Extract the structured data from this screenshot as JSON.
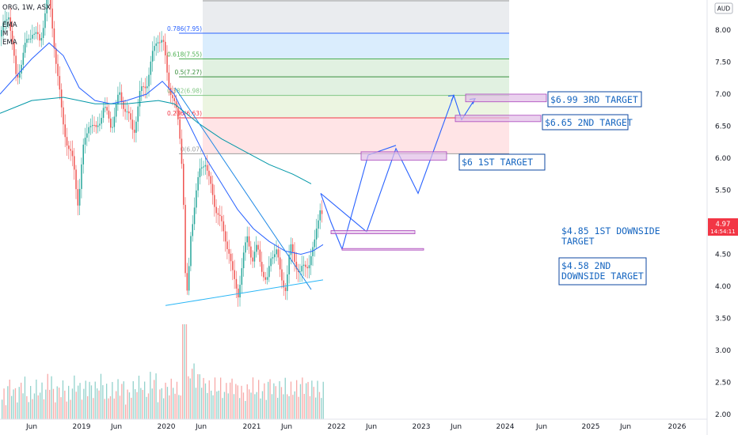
{
  "header": {
    "symbol": "ORG, 1W, ASX",
    "indicators": [
      "EMA",
      "M",
      "EMA"
    ],
    "currency": "AUD"
  },
  "price_label": {
    "price": "4.97",
    "countdown": "14:54:11",
    "color": "#f23645"
  },
  "colors": {
    "up": "#26a69a",
    "down": "#ef5350",
    "ema_blue": "#2962ff",
    "ema_teal": "#0097a7",
    "projection": "#2962ff",
    "target_box": "#ce93d8",
    "text_blue": "#1565c0"
  },
  "fib_levels": [
    {
      "label": "0.786(7.95)",
      "value": 7.95,
      "color": "#2962ff"
    },
    {
      "label": "0.618(7.55)",
      "value": 7.55,
      "color": "#4caf50"
    },
    {
      "label": "0.5(7.27)",
      "value": 7.27,
      "color": "#388e3c"
    },
    {
      "label": "0.382(6.98)",
      "value": 6.98,
      "color": "#81c784"
    },
    {
      "label": "0.236(6.63)",
      "value": 6.63,
      "color": "#f23645"
    },
    {
      "label": "0(6.07)",
      "value": 6.07,
      "color": "#9e9e9e"
    }
  ],
  "annotations": [
    {
      "text": "$6.99 3RD TARGET",
      "lines": [
        "$6.99 3RD TARGET"
      ]
    },
    {
      "text": "$6.65 2ND TARGET",
      "lines": [
        "$6.65 2ND TARGET"
      ]
    },
    {
      "text": "$6 1ST TARGET",
      "lines": [
        "$6 1ST TARGET"
      ]
    },
    {
      "text": "$4.85 1ST DOWNSIDE TARGET",
      "lines": [
        "$4.85 1ST DOWNSIDE",
        "TARGET"
      ]
    },
    {
      "text": "$4.58 2ND DOWNSIDE TARGET",
      "lines": [
        "$4.58 2ND",
        "DOWNSIDE TARGET"
      ]
    }
  ],
  "chart_data": {
    "type": "candlestick",
    "interval": "1W",
    "x_tick_labels": [
      "Jun",
      "2019",
      "Jun",
      "2020",
      "Jun",
      "2021",
      "Jun",
      "2022",
      "Jun",
      "2023",
      "Jun",
      "2024",
      "Jun",
      "2025",
      "Jun",
      "2026"
    ],
    "y_tick_labels": [
      "8.00",
      "7.50",
      "7.00",
      "6.50",
      "6.00",
      "5.50",
      "5.00",
      "4.50",
      "4.00",
      "3.50",
      "3.00",
      "2.50",
      "2.00"
    ],
    "ylim": [
      1.95,
      8.55
    ],
    "price_path": [
      [
        0,
        7.9
      ],
      [
        10,
        8.3
      ],
      [
        20,
        7.2
      ],
      [
        30,
        7.7
      ],
      [
        40,
        8.0
      ],
      [
        50,
        7.8
      ],
      [
        60,
        8.6
      ],
      [
        65,
        8.1
      ],
      [
        72,
        7.3
      ],
      [
        78,
        6.6
      ],
      [
        85,
        6.2
      ],
      [
        92,
        5.9
      ],
      [
        98,
        5.3
      ],
      [
        104,
        6.1
      ],
      [
        112,
        6.6
      ],
      [
        120,
        6.4
      ],
      [
        130,
        6.8
      ],
      [
        140,
        6.5
      ],
      [
        150,
        7.0
      ],
      [
        160,
        6.7
      ],
      [
        168,
        6.4
      ],
      [
        176,
        7.0
      ],
      [
        185,
        7.2
      ],
      [
        192,
        7.6
      ],
      [
        198,
        7.9
      ],
      [
        205,
        7.8
      ],
      [
        212,
        7.2
      ],
      [
        218,
        6.9
      ],
      [
        224,
        6.6
      ],
      [
        228,
        6.2
      ],
      [
        231,
        5.3
      ],
      [
        233,
        4.2
      ],
      [
        236,
        3.8
      ],
      [
        240,
        4.8
      ],
      [
        246,
        5.4
      ],
      [
        252,
        5.8
      ],
      [
        258,
        6.0
      ],
      [
        264,
        5.6
      ],
      [
        270,
        5.3
      ],
      [
        276,
        5.1
      ],
      [
        282,
        4.8
      ],
      [
        288,
        4.6
      ],
      [
        294,
        4.1
      ],
      [
        300,
        3.9
      ],
      [
        306,
        4.4
      ],
      [
        312,
        4.8
      ],
      [
        318,
        4.4
      ],
      [
        324,
        4.6
      ],
      [
        330,
        4.3
      ],
      [
        336,
        4.0
      ],
      [
        342,
        4.5
      ],
      [
        348,
        4.6
      ],
      [
        354,
        4.1
      ],
      [
        360,
        4.0
      ],
      [
        366,
        4.6
      ],
      [
        372,
        4.4
      ],
      [
        378,
        4.2
      ],
      [
        384,
        4.3
      ],
      [
        390,
        4.4
      ],
      [
        396,
        4.6
      ],
      [
        400,
        5.0
      ],
      [
        404,
        5.3
      ],
      [
        408,
        4.97
      ]
    ],
    "ema_blue": [
      [
        0,
        7.0
      ],
      [
        40,
        7.55
      ],
      [
        62,
        7.8
      ],
      [
        80,
        7.6
      ],
      [
        100,
        7.1
      ],
      [
        120,
        6.9
      ],
      [
        140,
        6.85
      ],
      [
        160,
        6.9
      ],
      [
        185,
        7.0
      ],
      [
        205,
        7.2
      ],
      [
        220,
        7.0
      ],
      [
        240,
        6.5
      ],
      [
        260,
        6.0
      ],
      [
        280,
        5.6
      ],
      [
        300,
        5.2
      ],
      [
        320,
        4.9
      ],
      [
        340,
        4.7
      ],
      [
        360,
        4.55
      ],
      [
        380,
        4.5
      ],
      [
        395,
        4.55
      ],
      [
        408,
        4.65
      ]
    ],
    "ema_teal": [
      [
        0,
        6.7
      ],
      [
        40,
        6.9
      ],
      [
        80,
        6.95
      ],
      [
        120,
        6.85
      ],
      [
        160,
        6.85
      ],
      [
        200,
        6.9
      ],
      [
        220,
        6.85
      ],
      [
        250,
        6.55
      ],
      [
        280,
        6.3
      ],
      [
        310,
        6.1
      ],
      [
        340,
        5.9
      ],
      [
        370,
        5.75
      ],
      [
        393,
        5.6
      ]
    ],
    "volume_bars": [
      0.3,
      0.55,
      0.4,
      0.6,
      0.35,
      0.5,
      0.45,
      0.7,
      0.4,
      0.5,
      0.35,
      0.6,
      0.45,
      0.55,
      0.5,
      0.65,
      0.4,
      0.45,
      0.55,
      0.35,
      0.5,
      0.6,
      0.45,
      0.7,
      0.4,
      0.5,
      0.55,
      0.45,
      0.6,
      0.95,
      0.75,
      0.6,
      0.5,
      0.55,
      0.45,
      0.6,
      0.5,
      0.4,
      0.55,
      0.5,
      0.45,
      0.6,
      0.5,
      0.55,
      0.45,
      0.5,
      0.6,
      0.55,
      0.5,
      0.45
    ],
    "trendline_upper": [
      [
        221,
        7.1
      ],
      [
        393,
        3.95
      ]
    ],
    "trendline_lower": [
      [
        209,
        3.7
      ],
      [
        408,
        4.1
      ]
    ],
    "projection_path": [
      [
        405,
        5.45
      ],
      [
        463,
        4.85
      ],
      [
        500,
        6.15
      ],
      [
        528,
        5.45
      ],
      [
        573,
        6.98
      ],
      [
        583,
        6.6
      ],
      [
        600,
        6.93
      ]
    ],
    "projection_path_2": [
      [
        405,
        5.45
      ],
      [
        418,
        5.0
      ],
      [
        432,
        4.58
      ],
      [
        465,
        6.05
      ],
      [
        500,
        6.2
      ]
    ],
    "target_boxes": [
      {
        "x1": 588,
        "x2": 690,
        "y1": 7.0,
        "y2": 6.88
      },
      {
        "x1": 575,
        "x2": 683,
        "y1": 6.67,
        "y2": 6.57
      },
      {
        "x1": 456,
        "x2": 564,
        "y1": 6.1,
        "y2": 5.97
      },
      {
        "x1": 418,
        "x2": 524,
        "y1": 4.87,
        "y2": 4.82
      },
      {
        "x1": 432,
        "x2": 535,
        "y1": 4.59,
        "y2": 4.57
      }
    ]
  }
}
